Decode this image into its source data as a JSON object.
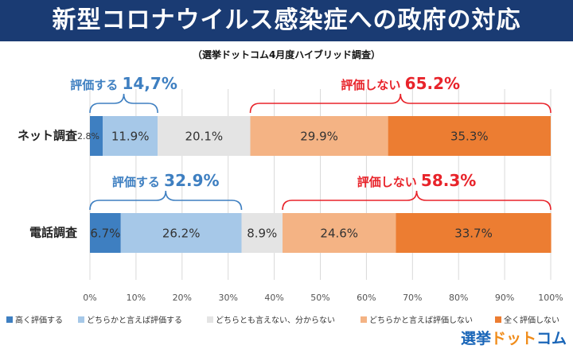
{
  "title": "新型コロナウイルス感染症への政府の対応",
  "subtitle": "（選挙ドットコム4月度ハイブリッド調査）",
  "logo": {
    "part1": "選挙",
    "part2": "ドット",
    "part3": "コム"
  },
  "chart_data": {
    "type": "bar",
    "orientation": "horizontal-stacked-100",
    "categories": [
      "ネット調査",
      "電話調査"
    ],
    "series": [
      {
        "name": "高く評価する",
        "color": "#3e7fc1",
        "values": [
          2.8,
          6.7
        ]
      },
      {
        "name": "どちらかと言えば評価する",
        "color": "#a6c8e8",
        "values": [
          11.9,
          26.2
        ]
      },
      {
        "name": "どちらとも言えない、分からない",
        "color": "#e4e4e4",
        "values": [
          20.1,
          8.9
        ]
      },
      {
        "name": "どちらかと言えば評価しない",
        "color": "#f4b384",
        "values": [
          29.9,
          24.6
        ]
      },
      {
        "name": "全く評価しない",
        "color": "#ec7d32",
        "values": [
          35.3,
          33.7
        ]
      }
    ],
    "data_labels": [
      [
        "2.8%",
        "11.9%",
        "20.1%",
        "29.9%",
        "35.3%"
      ],
      [
        "6.7%",
        "26.2%",
        "8.9%",
        "24.6%",
        "33.7%"
      ]
    ],
    "x_ticks": [
      "0%",
      "10%",
      "20%",
      "30%",
      "40%",
      "50%",
      "60%",
      "70%",
      "80%",
      "90%",
      "100%"
    ],
    "xlim": [
      0,
      100
    ],
    "grid": true,
    "legend_position": "bottom",
    "annotations": [
      {
        "row": 0,
        "from": 0,
        "to": 14.7,
        "side": "positive",
        "label": "評価する",
        "value": "14,7%"
      },
      {
        "row": 0,
        "from": 34.8,
        "to": 100,
        "side": "negative",
        "label": "評価しない",
        "value": "65.2%"
      },
      {
        "row": 1,
        "from": 0,
        "to": 32.9,
        "side": "positive",
        "label": "評価する",
        "value": "32.9%"
      },
      {
        "row": 1,
        "from": 41.8,
        "to": 100,
        "side": "negative",
        "label": "評価しない",
        "value": "58.3%"
      }
    ],
    "annotation_colors": {
      "positive": "#3e7fc1",
      "negative": "#e8232a"
    }
  }
}
